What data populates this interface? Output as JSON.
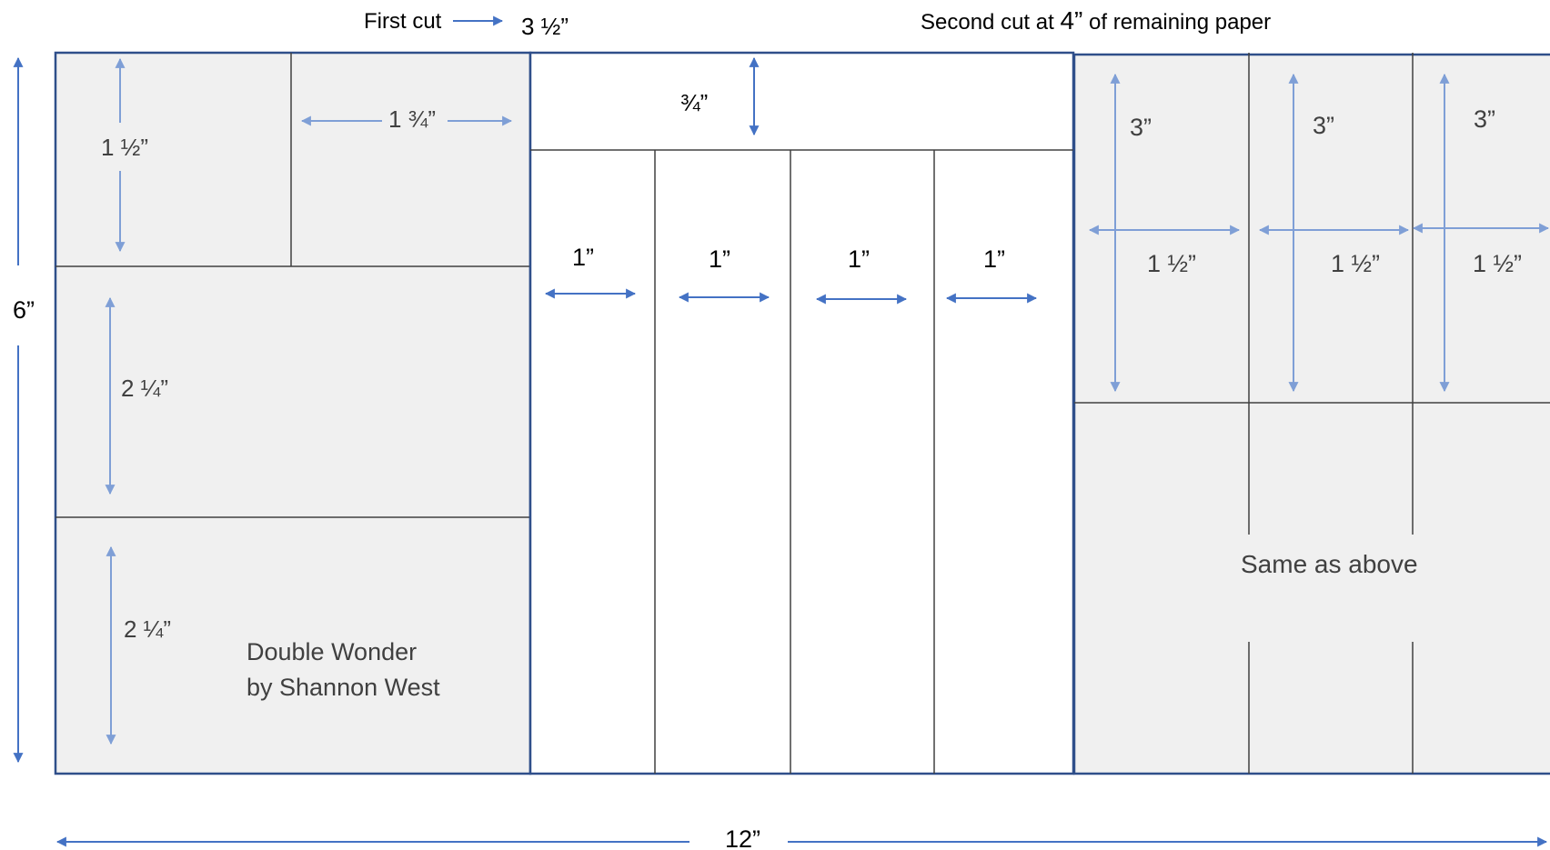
{
  "header": {
    "first_cut_label": "First cut",
    "first_cut_value": "3 ½”",
    "second_cut_label_a": "Second cut at ",
    "second_cut_value": "4”",
    "second_cut_label_b": " of remaining paper"
  },
  "dimensions": {
    "height": "6”",
    "width": "12”"
  },
  "left_section": {
    "top_height": "1 ½”",
    "top_width": "1 ¾”",
    "middle_height": "2 ¼”",
    "bottom_height": "2 ¼”",
    "title_line1": "Double Wonder",
    "title_line2": "by Shannon West"
  },
  "middle_section": {
    "header_height": "¾”",
    "strip_widths": [
      "1”",
      "1”",
      "1”",
      "1”"
    ]
  },
  "right_section": {
    "cells": [
      {
        "height": "3”",
        "width": "1 ½”"
      },
      {
        "height": "3”",
        "width": "1 ½”"
      },
      {
        "height": "3”",
        "width": "1 ½”"
      }
    ],
    "bottom_note": "Same as above"
  },
  "colors": {
    "panel_fill": "#f0f0f0",
    "border": "#2f4f8a",
    "line": "#404040",
    "arrow_dark": "#4472c4",
    "arrow_light": "#7f9fd6",
    "text_dark": "#000000",
    "text_grey": "#404040"
  }
}
